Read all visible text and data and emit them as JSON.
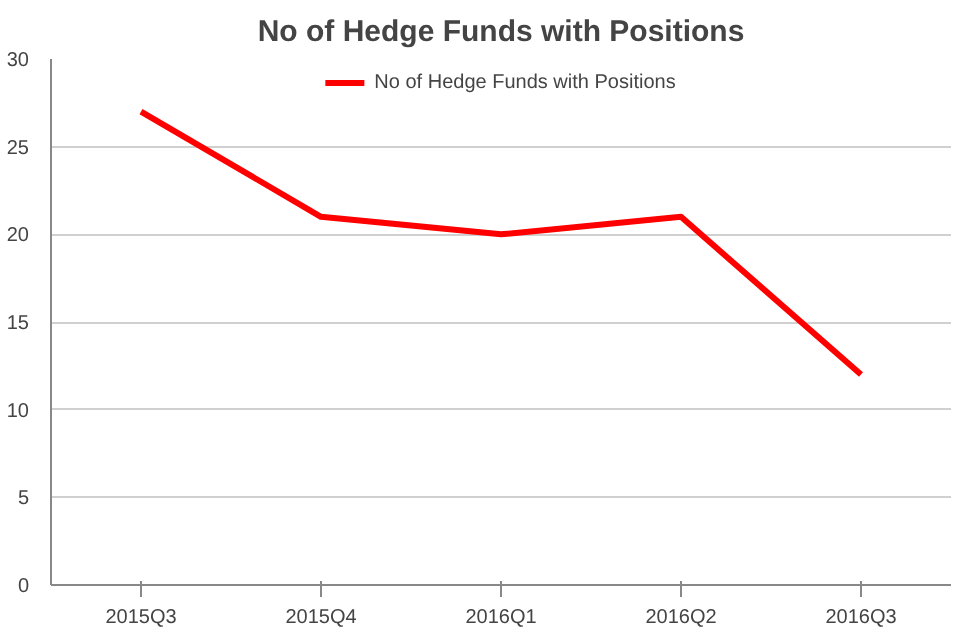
{
  "chart_data": {
    "type": "line",
    "title": "No of Hedge Funds with Positions",
    "categories": [
      "2015Q3",
      "2015Q4",
      "2016Q1",
      "2016Q2",
      "2016Q3"
    ],
    "series": [
      {
        "name": "No of Hedge Funds with Positions",
        "color": "#ff0000",
        "values": [
          27,
          21,
          20,
          21,
          12
        ]
      }
    ],
    "ylim": [
      0,
      30
    ],
    "yticks": [
      0,
      5,
      10,
      15,
      20,
      25,
      30
    ],
    "grid": "y",
    "legend": "top",
    "marker": "none",
    "line_style": "solid"
  }
}
